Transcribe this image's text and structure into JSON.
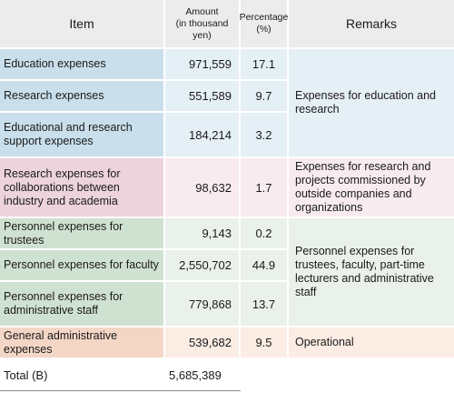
{
  "header": {
    "item": "Item",
    "amount_line1": "Amount",
    "amount_line2": "(in thousand yen)",
    "percentage_line1": "Percentage",
    "percentage_line2": "(%)",
    "remarks": "Remarks"
  },
  "rows": [
    {
      "item": "Education expenses",
      "amount": "971,559",
      "percentage": "17.1"
    },
    {
      "item": "Research expenses",
      "amount": "551,589",
      "percentage": "9.7"
    },
    {
      "item": "Educational and research support expenses",
      "amount": "184,214",
      "percentage": "3.2"
    },
    {
      "item": "Research expenses for collaborations between industry and academia",
      "amount": "98,632",
      "percentage": "1.7"
    },
    {
      "item": "Personnel expenses for trustees",
      "amount": "9,143",
      "percentage": "0.2"
    },
    {
      "item": "Personnel expenses for faculty",
      "amount": "2,550,702",
      "percentage": "44.9"
    },
    {
      "item": "Personnel expenses for administrative staff",
      "amount": "779,868",
      "percentage": "13.7"
    },
    {
      "item": "General administrative expenses",
      "amount": "539,682",
      "percentage": "9.5"
    }
  ],
  "remarks": {
    "education_research": "Expenses for education and research",
    "commissioned": "Expenses for research and projects commissioned by outside companies and organizations",
    "personnel": "Personnel expenses for trustees, faculty, part-time lecturers and administrative staff",
    "operational": "Operational"
  },
  "total": {
    "label": "Total (B)",
    "amount": "5,685,389"
  },
  "colors": {
    "header_bg": "#ececec",
    "education_group": "#c9dfec",
    "industry_group": "#ecd3dc",
    "personnel_group": "#cfe1d0",
    "general_group": "#f4d6c6"
  }
}
